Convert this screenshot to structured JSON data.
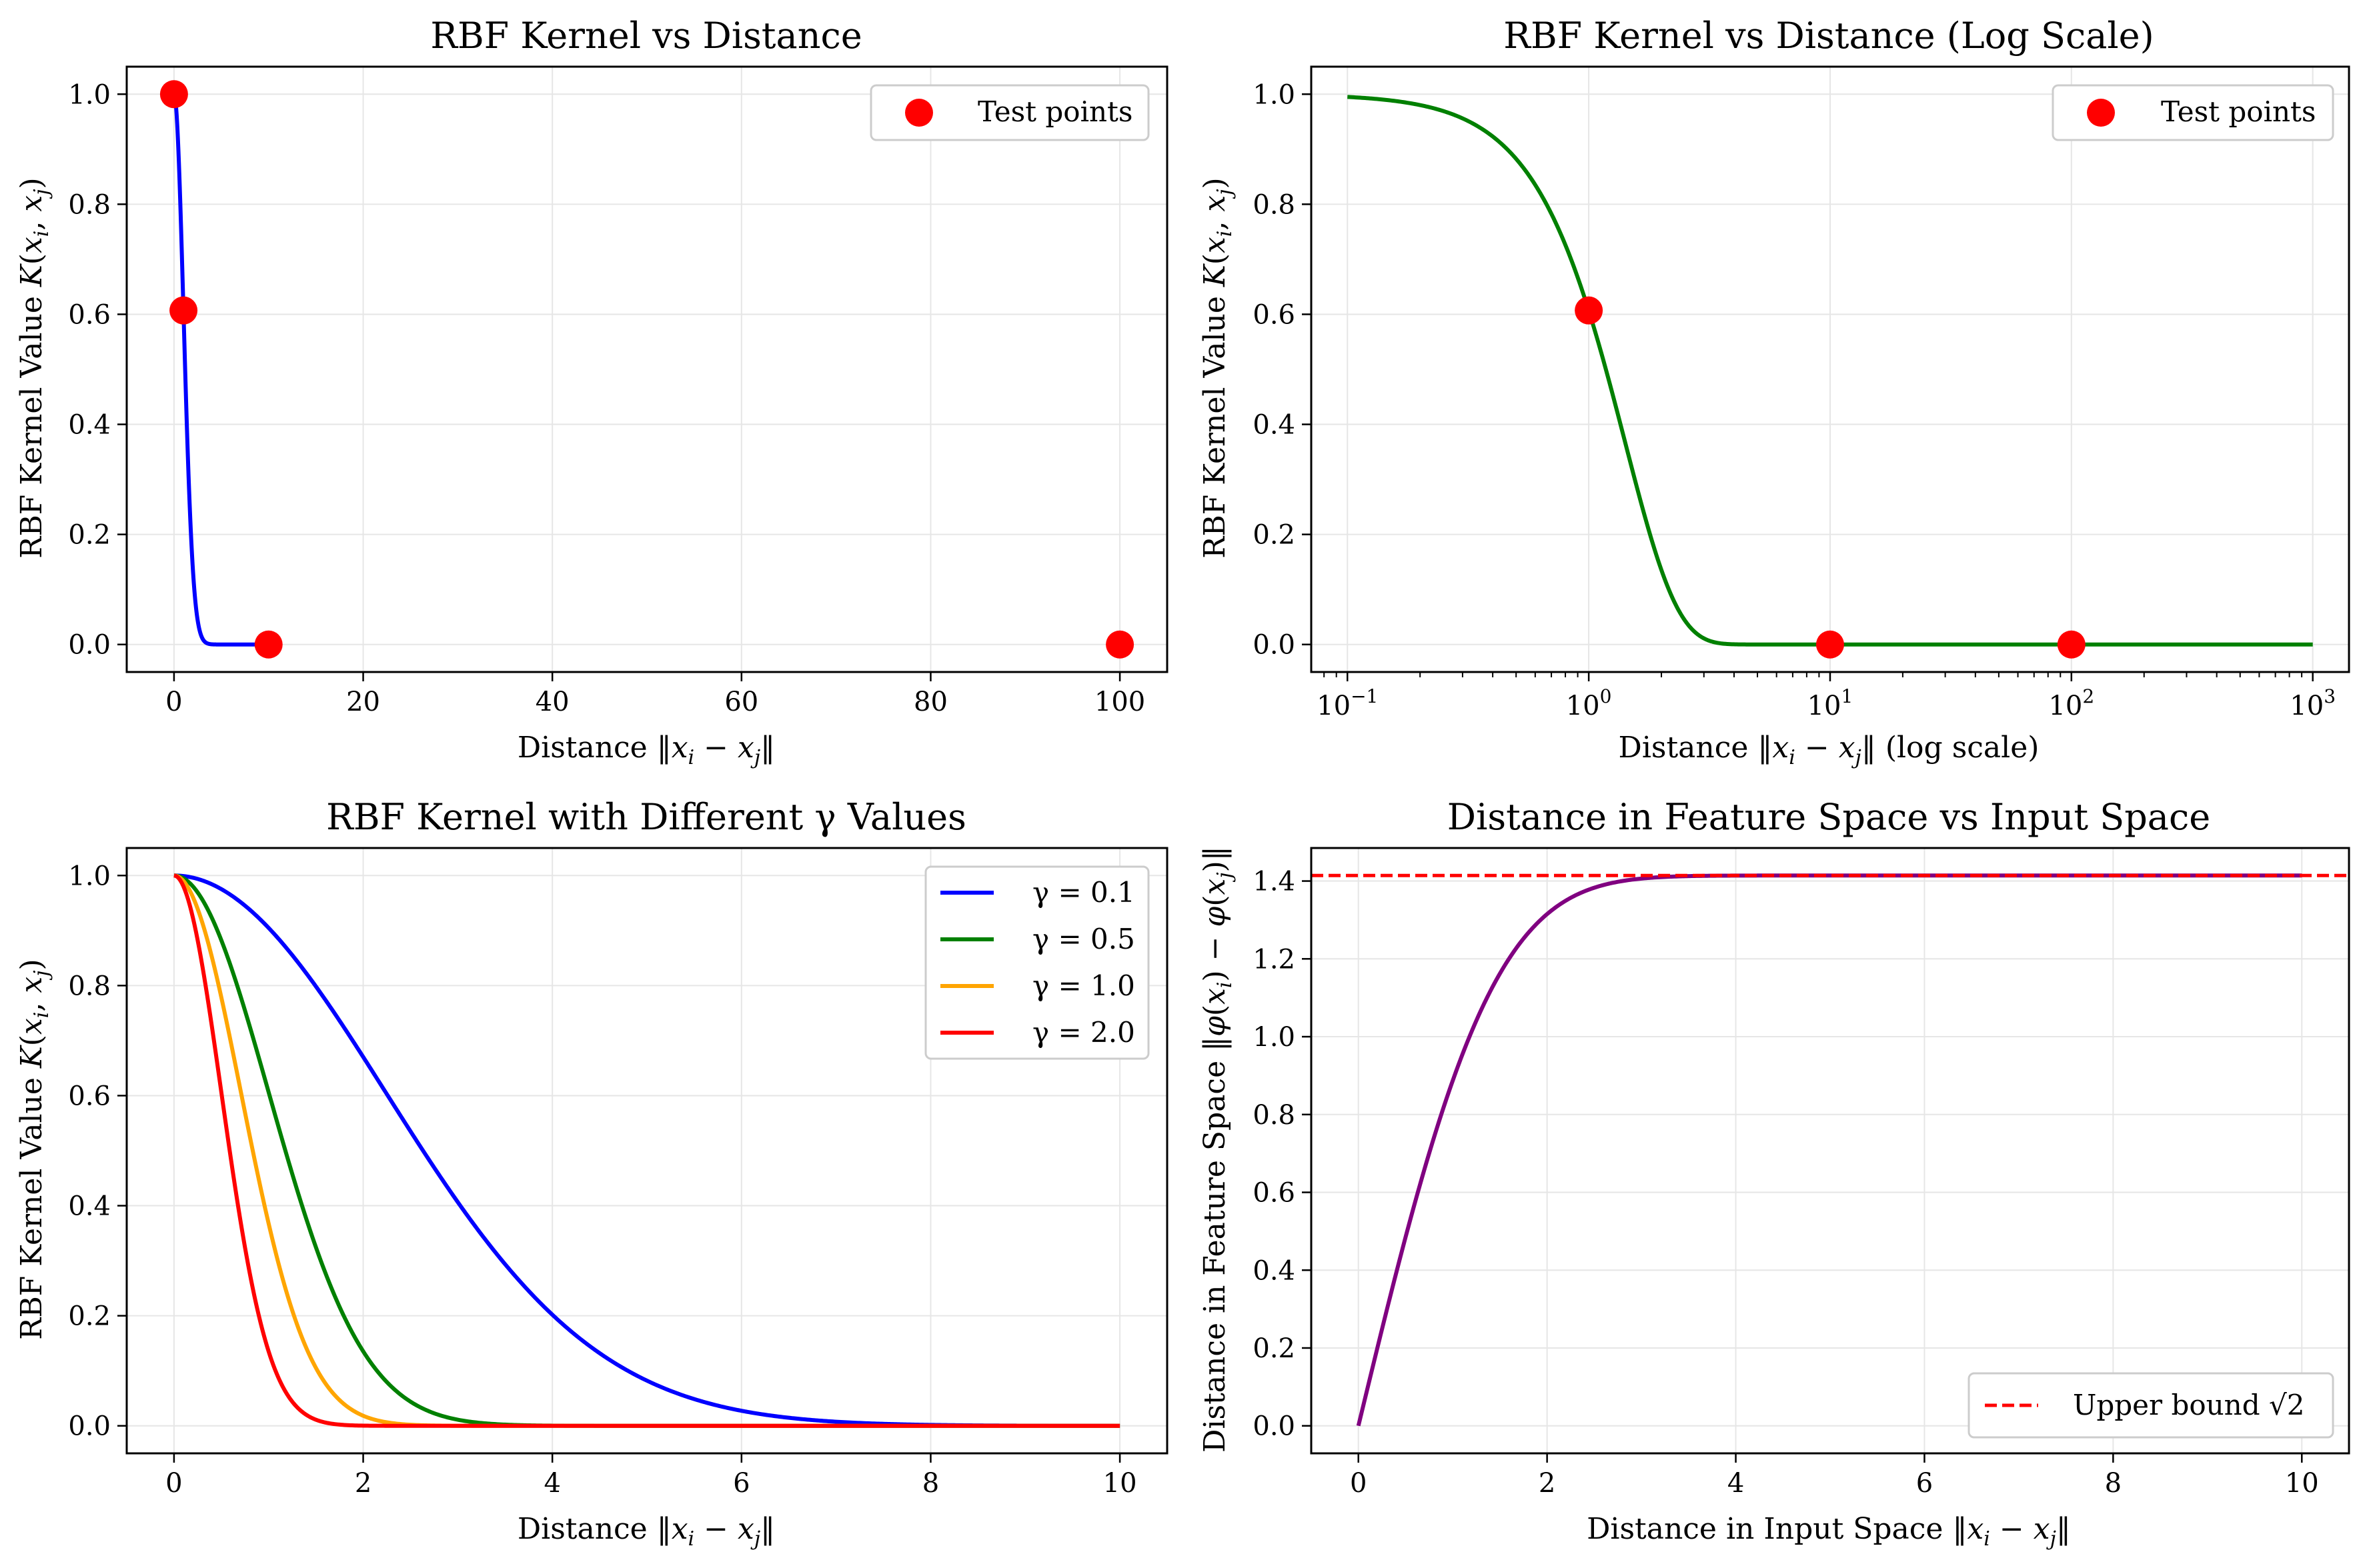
{
  "colors": {
    "blue": "#0000ff",
    "green": "#008000",
    "orange": "#ffa500",
    "red": "#ff0000",
    "purple": "#800080",
    "grid": "#e6e6e6",
    "marker": "#ff0000"
  },
  "chart_data": [
    {
      "type": "line",
      "title": "RBF Kernel vs Distance",
      "xlabel": "Distance ‖x_i − x_j‖",
      "ylabel": "RBF Kernel Value K(x_i, x_j)",
      "xlim": [
        -5,
        105
      ],
      "ylim": [
        -0.05,
        1.05
      ],
      "xticks": [
        0,
        20,
        40,
        60,
        80,
        100
      ],
      "xtick_labels": [
        "0",
        "20",
        "40",
        "60",
        "80",
        "100"
      ],
      "yticks": [
        0.0,
        0.2,
        0.4,
        0.6,
        0.8,
        1.0
      ],
      "ytick_labels": [
        "0.0",
        "0.2",
        "0.4",
        "0.6",
        "0.8",
        "1.0"
      ],
      "grid": true,
      "legend": {
        "position": "top-right",
        "entries": [
          "Test points"
        ]
      },
      "series": [
        {
          "kind": "curve",
          "color": "blue",
          "function": "rbf",
          "gamma": 0.5,
          "x_range": [
            0,
            10
          ]
        },
        {
          "kind": "markers",
          "name": "Test points",
          "color": "red",
          "x": [
            0,
            1,
            10,
            100
          ],
          "y": [
            1.0,
            0.607,
            0.0,
            0.0
          ]
        }
      ]
    },
    {
      "type": "line",
      "title": "RBF Kernel vs Distance (Log Scale)",
      "xlabel": "Distance ‖x_i − x_j‖ (log scale)",
      "ylabel": "RBF Kernel Value K(x_i, x_j)",
      "xscale": "log",
      "xlim": [
        0.0708,
        1413
      ],
      "ylim": [
        -0.05,
        1.05
      ],
      "xticks": [
        0.1,
        1,
        10,
        100,
        1000
      ],
      "xtick_labels": [
        [
          "10",
          "−1"
        ],
        [
          "10",
          "0"
        ],
        [
          "10",
          "1"
        ],
        [
          "10",
          "2"
        ],
        [
          "10",
          "3"
        ]
      ],
      "yticks": [
        0.0,
        0.2,
        0.4,
        0.6,
        0.8,
        1.0
      ],
      "ytick_labels": [
        "0.0",
        "0.2",
        "0.4",
        "0.6",
        "0.8",
        "1.0"
      ],
      "grid": true,
      "legend": {
        "position": "top-right",
        "entries": [
          "Test points"
        ]
      },
      "series": [
        {
          "kind": "curve",
          "color": "green",
          "function": "rbf",
          "gamma": 0.5,
          "x_range": [
            0.1,
            1000
          ]
        },
        {
          "kind": "markers",
          "name": "Test points",
          "color": "red",
          "x": [
            1,
            10,
            100
          ],
          "y": [
            0.607,
            0.0,
            0.0
          ]
        }
      ]
    },
    {
      "type": "line",
      "title": "RBF Kernel with Different γ Values",
      "xlabel": "Distance ‖x_i − x_j‖",
      "ylabel": "RBF Kernel Value K(x_i, x_j)",
      "xlim": [
        -0.5,
        10.5
      ],
      "ylim": [
        -0.05,
        1.05
      ],
      "xticks": [
        0,
        2,
        4,
        6,
        8,
        10
      ],
      "xtick_labels": [
        "0",
        "2",
        "4",
        "6",
        "8",
        "10"
      ],
      "yticks": [
        0.0,
        0.2,
        0.4,
        0.6,
        0.8,
        1.0
      ],
      "ytick_labels": [
        "0.0",
        "0.2",
        "0.4",
        "0.6",
        "0.8",
        "1.0"
      ],
      "grid": true,
      "legend": {
        "position": "top-right",
        "entries": [
          "γ = 0.1",
          "γ = 0.5",
          "γ = 1.0",
          "γ = 2.0"
        ]
      },
      "series": [
        {
          "kind": "curve",
          "name": "γ = 0.1",
          "color": "blue",
          "function": "rbf",
          "gamma": 0.1,
          "x_range": [
            0,
            10
          ]
        },
        {
          "kind": "curve",
          "name": "γ = 0.5",
          "color": "green",
          "function": "rbf",
          "gamma": 0.5,
          "x_range": [
            0,
            10
          ]
        },
        {
          "kind": "curve",
          "name": "γ = 1.0",
          "color": "orange",
          "function": "rbf",
          "gamma": 1.0,
          "x_range": [
            0,
            10
          ]
        },
        {
          "kind": "curve",
          "name": "γ = 2.0",
          "color": "red",
          "function": "rbf",
          "gamma": 2.0,
          "x_range": [
            0,
            10
          ]
        }
      ]
    },
    {
      "type": "line",
      "title": "Distance in Feature Space vs Input Space",
      "xlabel": "Distance in Input Space ‖x_i − x_j‖",
      "ylabel": "Distance in Feature Space ‖φ(x_i) − φ(x_j)‖",
      "xlim": [
        -0.5,
        10.5
      ],
      "ylim": [
        -0.0707,
        1.4849
      ],
      "xticks": [
        0,
        2,
        4,
        6,
        8,
        10
      ],
      "xtick_labels": [
        "0",
        "2",
        "4",
        "6",
        "8",
        "10"
      ],
      "yticks": [
        0.0,
        0.2,
        0.4,
        0.6,
        0.8,
        1.0,
        1.2,
        1.4
      ],
      "ytick_labels": [
        "0.0",
        "0.2",
        "0.4",
        "0.6",
        "0.8",
        "1.0",
        "1.2",
        "1.4"
      ],
      "grid": true,
      "legend": {
        "position": "bottom-right",
        "entries": [
          "Upper bound √2"
        ]
      },
      "series": [
        {
          "kind": "curve",
          "color": "purple",
          "function": "feature_distance",
          "gamma": 0.5,
          "x_range": [
            0,
            10
          ]
        },
        {
          "kind": "hline",
          "name": "Upper bound √2",
          "color": "red",
          "y": 1.41421,
          "dashed": true
        }
      ]
    }
  ]
}
